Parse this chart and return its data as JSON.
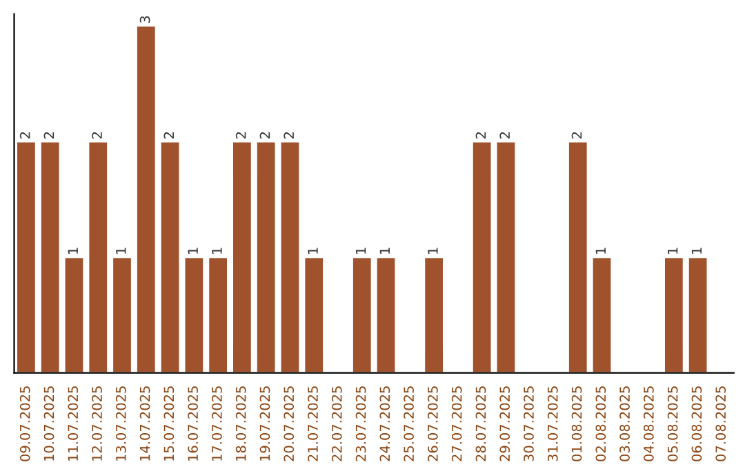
{
  "chart_data": {
    "type": "bar",
    "categories": [
      "09.07.2025",
      "10.07.2025",
      "11.07.2025",
      "12.07.2025",
      "13.07.2025",
      "14.07.2025",
      "15.07.2025",
      "16.07.2025",
      "17.07.2025",
      "18.07.2025",
      "19.07.2025",
      "20.07.2025",
      "21.07.2025",
      "22.07.2025",
      "23.07.2025",
      "24.07.2025",
      "25.07.2025",
      "26.07.2025",
      "27.07.2025",
      "28.07.2025",
      "29.07.2025",
      "30.07.2025",
      "31.07.2025",
      "01.08.2025",
      "02.08.2025",
      "03.08.2025",
      "04.08.2025",
      "05.08.2025",
      "06.08.2025",
      "07.08.2025"
    ],
    "values": [
      2,
      2,
      1,
      2,
      1,
      3,
      2,
      1,
      1,
      2,
      2,
      2,
      1,
      null,
      1,
      1,
      null,
      1,
      null,
      2,
      2,
      null,
      null,
      2,
      1,
      null,
      null,
      1,
      1,
      null
    ],
    "data_labels": true,
    "color": "#a0522d",
    "ylim": [
      0,
      3.1
    ],
    "tick_labels": "x",
    "grid": false,
    "legend": false
  }
}
